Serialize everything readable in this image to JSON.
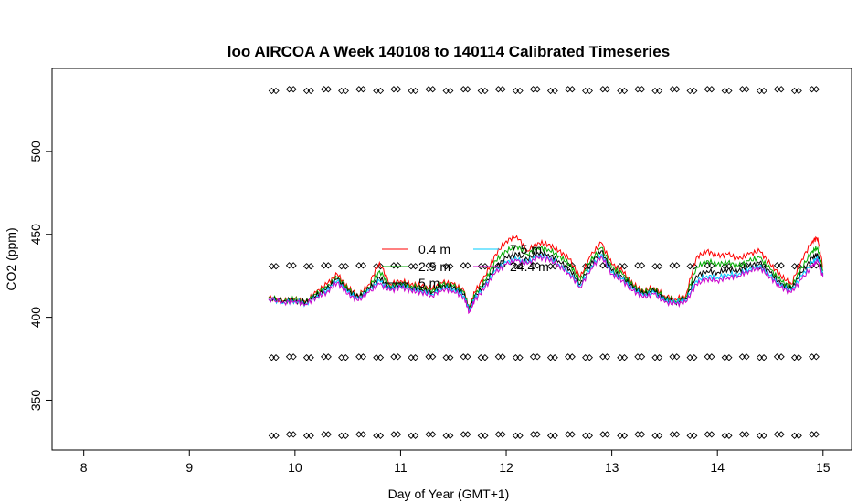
{
  "chart_data": {
    "type": "line",
    "title": "loo AIRCOA A  Week 140108 to 140114  Calibrated Timeseries",
    "xlabel": "Day of Year (GMT+1)",
    "ylabel": "CO2 (ppm)",
    "xlim": [
      7.7,
      15.27
    ],
    "ylim": [
      320,
      550
    ],
    "xticks": [
      8,
      9,
      10,
      11,
      12,
      13,
      14,
      15
    ],
    "yticks": [
      350,
      400,
      450,
      500
    ],
    "grid": false,
    "legend_position": "center",
    "series": [
      {
        "name": "0.4 m",
        "color": "#ff0000",
        "x": [
          9.75,
          9.9,
          10.0,
          10.1,
          10.2,
          10.3,
          10.4,
          10.5,
          10.6,
          10.7,
          10.8,
          10.9,
          11.0,
          11.1,
          11.2,
          11.3,
          11.4,
          11.5,
          11.6,
          11.65,
          11.7,
          11.8,
          11.9,
          12.0,
          12.1,
          12.2,
          12.3,
          12.4,
          12.5,
          12.6,
          12.7,
          12.8,
          12.9,
          13.0,
          13.1,
          13.2,
          13.3,
          13.4,
          13.5,
          13.6,
          13.7,
          13.8,
          13.9,
          14.0,
          14.1,
          14.2,
          14.3,
          14.4,
          14.5,
          14.6,
          14.7,
          14.8,
          14.9,
          14.95,
          15.0
        ],
        "y": [
          412,
          410,
          411,
          409,
          415,
          420,
          426,
          418,
          413,
          420,
          433,
          420,
          422,
          420,
          419,
          417,
          421,
          420,
          416,
          405,
          415,
          425,
          438,
          446,
          449,
          440,
          445,
          444,
          440,
          435,
          424,
          437,
          445,
          432,
          428,
          420,
          416,
          418,
          413,
          411,
          413,
          436,
          440,
          437,
          438,
          435,
          438,
          440,
          432,
          425,
          420,
          435,
          446,
          448,
          430
        ]
      },
      {
        "name": "2.5 m",
        "color": "#00aa00",
        "x": [
          9.75,
          9.9,
          10.0,
          10.1,
          10.2,
          10.3,
          10.4,
          10.5,
          10.6,
          10.7,
          10.8,
          10.9,
          11.0,
          11.1,
          11.2,
          11.3,
          11.4,
          11.5,
          11.6,
          11.65,
          11.7,
          11.8,
          11.9,
          12.0,
          12.1,
          12.2,
          12.3,
          12.4,
          12.5,
          12.6,
          12.7,
          12.8,
          12.9,
          13.0,
          13.1,
          13.2,
          13.3,
          13.4,
          13.5,
          13.6,
          13.7,
          13.8,
          13.9,
          14.0,
          14.1,
          14.2,
          14.3,
          14.4,
          14.5,
          14.6,
          14.7,
          14.8,
          14.9,
          14.95,
          15.0
        ],
        "y": [
          412,
          410,
          411,
          409,
          414,
          418,
          424,
          417,
          412,
          418,
          428,
          419,
          421,
          419,
          418,
          416,
          420,
          419,
          415,
          405,
          413,
          422,
          434,
          440,
          443,
          438,
          442,
          441,
          437,
          432,
          422,
          434,
          442,
          430,
          426,
          419,
          415,
          417,
          412,
          410,
          412,
          430,
          434,
          432,
          433,
          431,
          434,
          436,
          429,
          422,
          418,
          430,
          440,
          442,
          428
        ]
      },
      {
        "name": "5 m",
        "color": "#000000",
        "x": [
          9.75,
          9.9,
          10.0,
          10.1,
          10.2,
          10.3,
          10.4,
          10.5,
          10.6,
          10.7,
          10.8,
          10.9,
          11.0,
          11.1,
          11.2,
          11.3,
          11.4,
          11.5,
          11.6,
          11.65,
          11.7,
          11.8,
          11.9,
          12.0,
          12.1,
          12.2,
          12.3,
          12.4,
          12.5,
          12.6,
          12.7,
          12.8,
          12.9,
          13.0,
          13.1,
          13.2,
          13.3,
          13.4,
          13.5,
          13.6,
          13.7,
          13.8,
          13.9,
          14.0,
          14.1,
          14.2,
          14.3,
          14.4,
          14.5,
          14.6,
          14.7,
          14.8,
          14.9,
          14.95,
          15.0
        ],
        "y": [
          411,
          410,
          410,
          409,
          413,
          417,
          423,
          416,
          412,
          417,
          424,
          418,
          420,
          418,
          417,
          415,
          419,
          418,
          414,
          404,
          412,
          420,
          430,
          436,
          438,
          435,
          439,
          438,
          434,
          429,
          420,
          432,
          440,
          428,
          424,
          418,
          414,
          416,
          411,
          409,
          411,
          425,
          428,
          427,
          429,
          428,
          431,
          433,
          427,
          420,
          417,
          427,
          436,
          438,
          426
        ]
      },
      {
        "name": "7.5 m",
        "color": "#00ccff",
        "x": [
          9.75,
          9.9,
          10.0,
          10.1,
          10.2,
          10.3,
          10.4,
          10.5,
          10.6,
          10.7,
          10.8,
          10.9,
          11.0,
          11.1,
          11.2,
          11.3,
          11.4,
          11.5,
          11.6,
          11.65,
          11.7,
          11.8,
          11.9,
          12.0,
          12.1,
          12.2,
          12.3,
          12.4,
          12.5,
          12.6,
          12.7,
          12.8,
          12.9,
          13.0,
          13.1,
          13.2,
          13.3,
          13.4,
          13.5,
          13.6,
          13.7,
          13.8,
          13.9,
          14.0,
          14.1,
          14.2,
          14.3,
          14.4,
          14.5,
          14.6,
          14.7,
          14.8,
          14.9,
          14.95,
          15.0
        ],
        "y": [
          411,
          409,
          410,
          408,
          412,
          416,
          422,
          415,
          411,
          416,
          422,
          417,
          419,
          417,
          416,
          414,
          418,
          417,
          413,
          404,
          411,
          419,
          428,
          433,
          435,
          433,
          437,
          436,
          432,
          427,
          419,
          430,
          438,
          427,
          423,
          417,
          413,
          415,
          410,
          409,
          410,
          422,
          425,
          424,
          426,
          426,
          429,
          431,
          425,
          419,
          416,
          425,
          433,
          436,
          425
        ]
      },
      {
        "name": "24.4 m",
        "color": "#cc00cc",
        "x": [
          9.75,
          9.9,
          10.0,
          10.1,
          10.2,
          10.3,
          10.4,
          10.5,
          10.6,
          10.7,
          10.8,
          10.9,
          11.0,
          11.1,
          11.2,
          11.3,
          11.4,
          11.5,
          11.6,
          11.65,
          11.7,
          11.8,
          11.9,
          12.0,
          12.1,
          12.2,
          12.3,
          12.4,
          12.5,
          12.6,
          12.7,
          12.8,
          12.9,
          13.0,
          13.1,
          13.2,
          13.3,
          13.4,
          13.5,
          13.6,
          13.7,
          13.8,
          13.9,
          14.0,
          14.1,
          14.2,
          14.3,
          14.4,
          14.5,
          14.6,
          14.7,
          14.8,
          14.9,
          14.95,
          15.0
        ],
        "y": [
          411,
          409,
          410,
          408,
          412,
          415,
          421,
          414,
          410,
          415,
          420,
          416,
          418,
          416,
          415,
          413,
          417,
          416,
          412,
          403,
          410,
          418,
          427,
          432,
          434,
          432,
          436,
          435,
          431,
          426,
          418,
          429,
          437,
          426,
          422,
          416,
          412,
          414,
          409,
          408,
          409,
          420,
          423,
          422,
          424,
          425,
          428,
          430,
          424,
          418,
          415,
          423,
          431,
          434,
          424
        ]
      }
    ],
    "markers": {
      "style": "open-diamond",
      "x_start": 9.8,
      "x_end": 15.0,
      "x_step": 0.165,
      "rows": [
        {
          "y": 537,
          "jitter": 1.0
        },
        {
          "y": 431,
          "jitter": 0.5
        },
        {
          "y": 376,
          "jitter": 0.5
        },
        {
          "y": 329,
          "jitter": 0.8
        }
      ]
    }
  }
}
